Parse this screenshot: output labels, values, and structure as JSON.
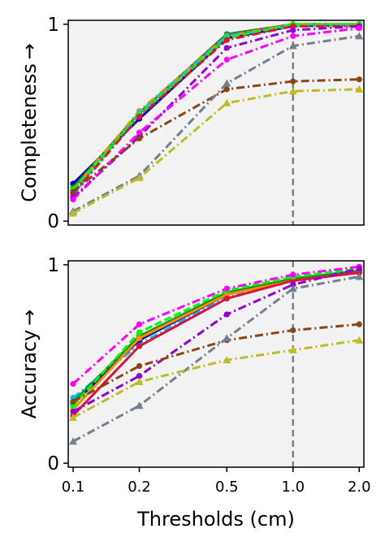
{
  "chart_data": [
    {
      "type": "line",
      "title": "",
      "xlabel": "",
      "ylabel": "Completeness →",
      "xscale": "log",
      "x": [
        0.1,
        0.2,
        0.5,
        1.0,
        2.0
      ],
      "xlim": [
        0.095,
        2.1
      ],
      "ylim": [
        -0.02,
        1.02
      ],
      "yticks": [
        0,
        1
      ],
      "ytick_labels": [
        "0",
        "1"
      ],
      "vline_x": 1.0,
      "background": "#f2f2f2",
      "grid": false,
      "series": [
        {
          "color": "#0000cd",
          "style": "solid",
          "marker": "circle",
          "values": [
            0.19,
            0.52,
            0.93,
            0.99,
            1.0
          ]
        },
        {
          "color": "#228b22",
          "style": "solid",
          "marker": "circle",
          "values": [
            0.17,
            0.55,
            0.95,
            1.0,
            1.0
          ]
        },
        {
          "color": "#ff1493",
          "style": "dashed",
          "marker": "circle",
          "values": [
            0.15,
            0.54,
            0.94,
            1.0,
            1.0
          ]
        },
        {
          "color": "#ff8c00",
          "style": "dashdot",
          "marker": "circle",
          "values": [
            0.16,
            0.56,
            0.94,
            1.0,
            1.0
          ]
        },
        {
          "color": "#00ced1",
          "style": "dashdot",
          "marker": "circle",
          "values": [
            0.13,
            0.55,
            0.94,
            0.99,
            1.0
          ]
        },
        {
          "color": "#00ff00",
          "style": "dashed",
          "marker": "circle",
          "values": [
            0.16,
            0.54,
            0.93,
            1.0,
            1.0
          ]
        },
        {
          "color": "#dc143c",
          "style": "dashdot",
          "marker": "circle",
          "values": [
            0.14,
            0.53,
            0.92,
            0.99,
            0.99
          ]
        },
        {
          "color": "#9400d3",
          "style": "dashdot",
          "marker": "circle",
          "values": [
            0.12,
            0.43,
            0.88,
            0.97,
            0.99
          ]
        },
        {
          "color": "#ff00ff",
          "style": "dashdot",
          "marker": "circle",
          "values": [
            0.11,
            0.45,
            0.82,
            0.94,
            0.98
          ]
        },
        {
          "color": "#8b4513",
          "style": "dashdot",
          "marker": "circle",
          "values": [
            0.15,
            0.42,
            0.67,
            0.71,
            0.72
          ]
        },
        {
          "color": "#708090",
          "style": "dashdot",
          "marker": "triangle",
          "values": [
            0.05,
            0.23,
            0.7,
            0.89,
            0.94
          ]
        },
        {
          "color": "#bcbd22",
          "style": "dashdot",
          "marker": "triangle",
          "values": [
            0.04,
            0.22,
            0.6,
            0.66,
            0.67
          ]
        }
      ]
    },
    {
      "type": "line",
      "title": "",
      "xlabel": "Thresholds (cm)",
      "ylabel": "Accuracy →",
      "xscale": "log",
      "x": [
        0.1,
        0.2,
        0.5,
        1.0,
        2.0
      ],
      "xticks": [
        0.1,
        0.2,
        0.5,
        1.0,
        2.0
      ],
      "xtick_labels": [
        "0.1",
        "0.2",
        "0.5",
        "1.0",
        "2.0"
      ],
      "xlim": [
        0.095,
        2.1
      ],
      "ylim": [
        -0.02,
        1.02
      ],
      "yticks": [
        0,
        1
      ],
      "ytick_labels": [
        "0",
        "1"
      ],
      "vline_x": 1.0,
      "background": "#f2f2f2",
      "grid": false,
      "series": [
        {
          "color": "#00bfff",
          "style": "dashdot",
          "marker": "circle",
          "values": [
            0.33,
            0.6,
            0.84,
            0.93,
            0.96
          ]
        },
        {
          "color": "#0000cd",
          "style": "solid",
          "marker": "circle",
          "values": [
            0.3,
            0.62,
            0.85,
            0.93,
            0.97
          ]
        },
        {
          "color": "#228b22",
          "style": "solid",
          "marker": "circle",
          "values": [
            0.31,
            0.64,
            0.86,
            0.93,
            0.97
          ]
        },
        {
          "color": "#ff8c00",
          "style": "solid",
          "marker": "circle",
          "values": [
            0.27,
            0.63,
            0.85,
            0.92,
            0.96
          ]
        },
        {
          "color": "#dc143c",
          "style": "solid",
          "marker": "circle",
          "values": [
            0.24,
            0.59,
            0.83,
            0.92,
            0.96
          ]
        },
        {
          "color": "#00ff00",
          "style": "dashed",
          "marker": "circle",
          "values": [
            0.29,
            0.66,
            0.87,
            0.94,
            0.98
          ]
        },
        {
          "color": "#ff00ff",
          "style": "dashdot",
          "marker": "circle",
          "values": [
            0.4,
            0.7,
            0.88,
            0.95,
            0.99
          ]
        },
        {
          "color": "#9400d3",
          "style": "dashdot",
          "marker": "circle",
          "values": [
            0.26,
            0.44,
            0.75,
            0.9,
            0.98
          ]
        },
        {
          "color": "#8b4513",
          "style": "dashdot",
          "marker": "circle",
          "values": [
            0.31,
            0.49,
            0.62,
            0.67,
            0.7
          ]
        },
        {
          "color": "#708090",
          "style": "dashdot",
          "marker": "triangle",
          "values": [
            0.11,
            0.29,
            0.63,
            0.88,
            0.94
          ]
        },
        {
          "color": "#bcbd22",
          "style": "dashdot",
          "marker": "triangle",
          "values": [
            0.23,
            0.41,
            0.52,
            0.57,
            0.62
          ]
        }
      ]
    }
  ]
}
